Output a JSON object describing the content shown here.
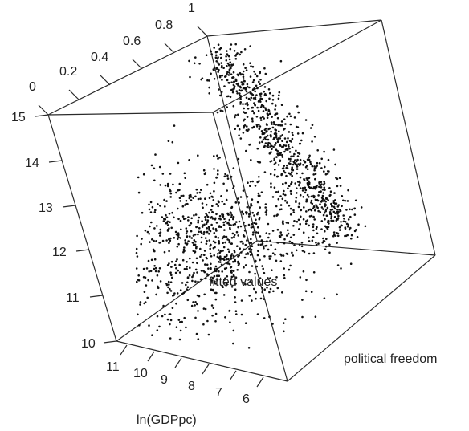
{
  "chart_data": {
    "type": "scatter",
    "projection": "3d",
    "title": "",
    "axes": {
      "x": {
        "label": "ln(GDPpc)",
        "range": [
          5,
          11.5
        ],
        "ticks": [
          "11",
          "10",
          "9",
          "8",
          "7",
          "6"
        ]
      },
      "y": {
        "label": "political freedom",
        "range": [
          0,
          1
        ],
        "ticks": [
          "0",
          "0.2",
          "0.4",
          "0.6",
          "0.8",
          "1"
        ]
      },
      "z": {
        "label": "fitted values",
        "range": [
          10,
          15
        ],
        "ticks": [
          "10",
          "11",
          "12",
          "13",
          "14",
          "15"
        ]
      }
    },
    "series": [
      {
        "description": "dense cloud along high political freedom / high fitted values",
        "n_points": 1800
      }
    ],
    "grid": false,
    "legend": "none",
    "colors": {
      "points": "#111111",
      "box": "#2b2b2b",
      "text": "#222222"
    }
  }
}
